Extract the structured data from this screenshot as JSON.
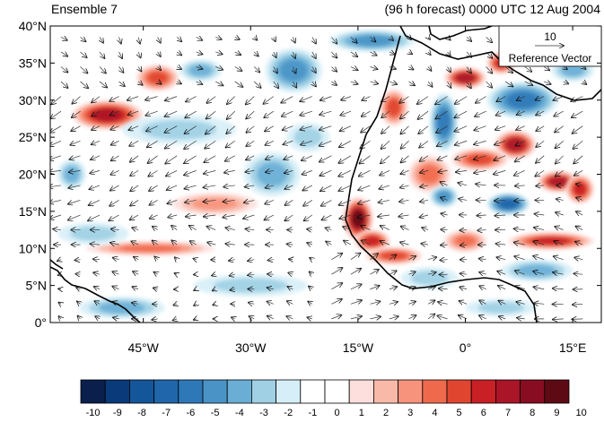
{
  "header": {
    "left": "Ensemble 7",
    "right": "(96 h forecast) 0000 UTC 12 Aug 2004"
  },
  "map": {
    "lat_range": [
      0,
      40
    ],
    "lon_range": [
      -58,
      19
    ],
    "y_ticks": [
      {
        "lat": 40,
        "label": "40°N"
      },
      {
        "lat": 35,
        "label": "35°N"
      },
      {
        "lat": 30,
        "label": "30°N"
      },
      {
        "lat": 25,
        "label": "25°N"
      },
      {
        "lat": 20,
        "label": "20°N"
      },
      {
        "lat": 15,
        "label": "15°N"
      },
      {
        "lat": 10,
        "label": "10°N"
      },
      {
        "lat": 5,
        "label": "5°N"
      },
      {
        "lat": 0,
        "label": "0°"
      }
    ],
    "x_ticks": [
      {
        "lon": -45,
        "label": "45°W"
      },
      {
        "lon": -30,
        "label": "30°W"
      },
      {
        "lon": -15,
        "label": "15°W"
      },
      {
        "lon": 0,
        "label": "0°"
      },
      {
        "lon": 15,
        "label": "15°E"
      }
    ]
  },
  "reference_vector": {
    "value": "10",
    "label": "Reference Vector"
  },
  "colorbar": {
    "colors": [
      "#0b1f4d",
      "#0a3a7a",
      "#14569a",
      "#2066ab",
      "#2e78b8",
      "#4a93c6",
      "#6aaed6",
      "#9fd0e4",
      "#d6eef7",
      "#ffffff",
      "#ffffff",
      "#fde0dd",
      "#f9b9a8",
      "#f7937c",
      "#ef6a4d",
      "#e04530",
      "#c92026",
      "#ab1528",
      "#880d22",
      "#5e0a14"
    ],
    "labels": [
      "-10",
      "-9",
      "-8",
      "-7",
      "-6",
      "-5",
      "-4",
      "-3",
      "-2",
      "-1",
      "0",
      "1",
      "2",
      "3",
      "4",
      "5",
      "6",
      "7",
      "8",
      "9",
      "10"
    ]
  },
  "anomalies": [
    {
      "lon": -50,
      "lat": 28,
      "rx": 5,
      "ry": 2,
      "v": 7
    },
    {
      "lon": -43,
      "lat": 33,
      "rx": 3,
      "ry": 1.8,
      "v": 5
    },
    {
      "lon": -37,
      "lat": 34,
      "rx": 3,
      "ry": 1.5,
      "v": -3
    },
    {
      "lon": -24,
      "lat": 34,
      "rx": 4,
      "ry": 3,
      "v": -4
    },
    {
      "lon": -13,
      "lat": 38,
      "rx": 6,
      "ry": 1.5,
      "v": -4
    },
    {
      "lon": -40,
      "lat": 26,
      "rx": 8,
      "ry": 2,
      "v": -2
    },
    {
      "lon": -27,
      "lat": 20,
      "rx": 4,
      "ry": 3,
      "v": -3
    },
    {
      "lon": -35,
      "lat": 16,
      "rx": 6,
      "ry": 1.5,
      "v": 3
    },
    {
      "lon": -44,
      "lat": 10,
      "rx": 9,
      "ry": 1,
      "v": 4
    },
    {
      "lon": -52,
      "lat": 12,
      "rx": 5,
      "ry": 1.5,
      "v": -2
    },
    {
      "lon": -30,
      "lat": 5,
      "rx": 8,
      "ry": 1.5,
      "v": -2
    },
    {
      "lon": -48,
      "lat": 2,
      "rx": 6,
      "ry": 1.5,
      "v": -3
    },
    {
      "lon": -15,
      "lat": 14,
      "rx": 2.2,
      "ry": 3,
      "v": 9
    },
    {
      "lon": -13,
      "lat": 11,
      "rx": 2.5,
      "ry": 1.5,
      "v": 6
    },
    {
      "lon": -10,
      "lat": 9,
      "rx": 4,
      "ry": 1.2,
      "v": 5
    },
    {
      "lon": -10,
      "lat": 29,
      "rx": 2,
      "ry": 2.5,
      "v": 5
    },
    {
      "lon": -3,
      "lat": 27,
      "rx": 2,
      "ry": 4,
      "v": -5
    },
    {
      "lon": 0,
      "lat": 33,
      "rx": 3,
      "ry": 1.5,
      "v": 8
    },
    {
      "lon": 5,
      "lat": 35,
      "rx": 2,
      "ry": 1.5,
      "v": 6
    },
    {
      "lon": 8,
      "lat": 30,
      "rx": 5,
      "ry": 2.5,
      "v": -5
    },
    {
      "lon": 15,
      "lat": 34,
      "rx": 3,
      "ry": 1.5,
      "v": -3
    },
    {
      "lon": 7,
      "lat": 24,
      "rx": 3,
      "ry": 2,
      "v": 8
    },
    {
      "lon": 2,
      "lat": 22,
      "rx": 4,
      "ry": 1.5,
      "v": 5
    },
    {
      "lon": -5,
      "lat": 20,
      "rx": 3,
      "ry": 2.5,
      "v": 4
    },
    {
      "lon": -3,
      "lat": 17,
      "rx": 2,
      "ry": 1.5,
      "v": -4
    },
    {
      "lon": 6,
      "lat": 16,
      "rx": 3,
      "ry": 1.5,
      "v": -6
    },
    {
      "lon": 13,
      "lat": 19,
      "rx": 3,
      "ry": 1.5,
      "v": 8
    },
    {
      "lon": 16,
      "lat": 18,
      "rx": 2,
      "ry": 2,
      "v": 6
    },
    {
      "lon": 12,
      "lat": 11,
      "rx": 6,
      "ry": 1.2,
      "v": 6
    },
    {
      "lon": 0,
      "lat": 11,
      "rx": 3,
      "ry": 1.5,
      "v": 4
    },
    {
      "lon": 10,
      "lat": 7,
      "rx": 5,
      "ry": 1.5,
      "v": -3
    },
    {
      "lon": -5,
      "lat": 6,
      "rx": 4,
      "ry": 1.5,
      "v": -2
    },
    {
      "lon": 5,
      "lat": 2,
      "rx": 5,
      "ry": 1.2,
      "v": -2
    },
    {
      "lon": -22,
      "lat": 25,
      "rx": 3,
      "ry": 2,
      "v": -2
    },
    {
      "lon": -55,
      "lat": 20,
      "rx": 2,
      "ry": 2,
      "v": -3
    }
  ]
}
